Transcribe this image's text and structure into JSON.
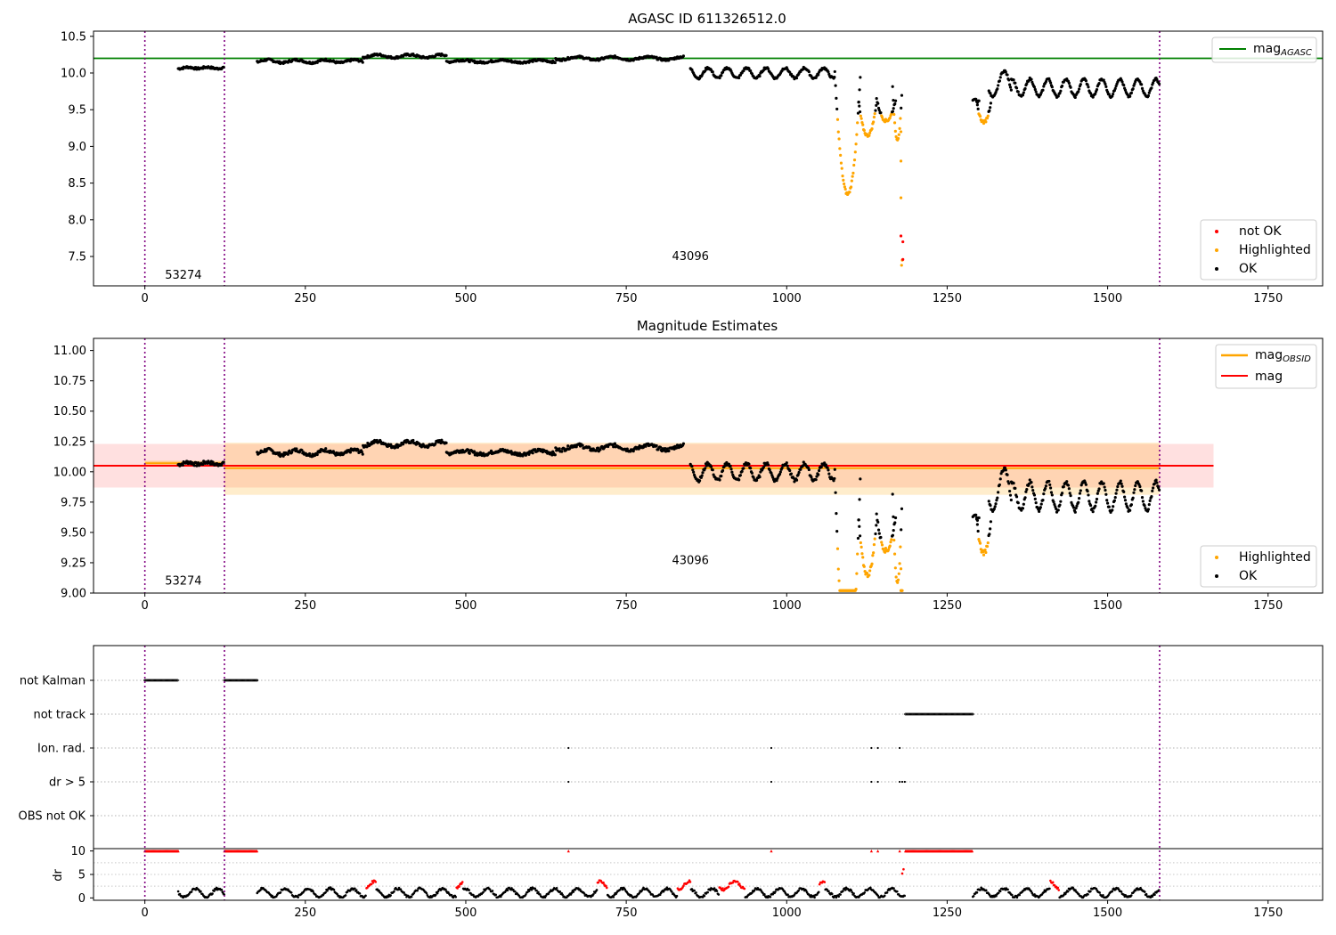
{
  "chart_data": [
    {
      "type": "scatter",
      "title": "AGASC ID 611326512.0",
      "xlim": [
        -80,
        1835
      ],
      "ylim": [
        7.1,
        10.57
      ],
      "xticks": [
        0,
        250,
        500,
        750,
        1000,
        1250,
        1500,
        1750
      ],
      "yticks": [
        "7.5",
        "8.0",
        "8.5",
        "9.0",
        "9.5",
        "10.0",
        "10.5"
      ],
      "vlines": [
        0,
        124,
        1581
      ],
      "hlines": [
        {
          "name": "mag_AGASC",
          "y": 10.2,
          "color": "#008000"
        }
      ],
      "obsid_labels": [
        {
          "text": "53274",
          "x": 60,
          "y": 7.2
        },
        {
          "text": "43096",
          "x": 850,
          "y": 7.45
        }
      ],
      "legend_lines": [
        {
          "label": "mag",
          "sub": "AGASC",
          "color": "#008000"
        }
      ],
      "legend_points": [
        {
          "label": "not OK",
          "color": "#ff0000"
        },
        {
          "label": "Highlighted",
          "color": "#ffa500"
        },
        {
          "label": "OK",
          "color": "#000000"
        }
      ],
      "segments": [
        {
          "x0": 52,
          "x1": 124,
          "base": 10.07,
          "amp": 0.01,
          "period": 30
        },
        {
          "x0": 175,
          "x1": 340,
          "base": 10.16,
          "amp": 0.02,
          "period": 45
        },
        {
          "x0": 340,
          "x1": 470,
          "base": 10.23,
          "amp": 0.02,
          "period": 50
        },
        {
          "x0": 470,
          "x1": 640,
          "base": 10.16,
          "amp": 0.015,
          "period": 60
        },
        {
          "x0": 640,
          "x1": 840,
          "base": 10.2,
          "amp": 0.02,
          "period": 55
        },
        {
          "x0": 850,
          "x1": 1075,
          "base": 10.0,
          "amp": 0.07,
          "period": 30
        },
        {
          "x0": 1290,
          "x1": 1300,
          "base": 9.63,
          "amp": 0.02,
          "period": 10
        },
        {
          "x0": 1315,
          "x1": 1350,
          "base": 9.85,
          "amp": 0.18,
          "period": 35
        },
        {
          "x0": 1350,
          "x1": 1581,
          "base": 9.8,
          "amp": 0.12,
          "period": 28
        }
      ],
      "dips": [
        {
          "x0": 1075,
          "x1": 1115,
          "top": 10.0,
          "bottom": 8.35
        },
        {
          "x0": 1112,
          "x1": 1140,
          "top": 9.6,
          "bottom": 9.15
        },
        {
          "x0": 1140,
          "x1": 1170,
          "top": 9.65,
          "bottom": 9.35
        },
        {
          "x0": 1165,
          "x1": 1180,
          "top": 9.8,
          "bottom": 9.1
        },
        {
          "x0": 1296,
          "x1": 1318,
          "top": 9.6,
          "bottom": 9.33
        }
      ],
      "highlighted_points": [
        [
          1178,
          9.2
        ],
        [
          1178,
          8.8
        ],
        [
          1178,
          8.3
        ],
        [
          1180,
          7.45
        ],
        [
          1179,
          7.38
        ]
      ],
      "notok_points": [
        [
          1178,
          7.78
        ],
        [
          1181,
          7.7
        ],
        [
          1181,
          7.46
        ]
      ]
    },
    {
      "type": "scatter",
      "title": "Magnitude Estimates",
      "xlim": [
        -80,
        1835
      ],
      "ylim": [
        9.0,
        11.1
      ],
      "xticks": [
        0,
        250,
        500,
        750,
        1000,
        1250,
        1500,
        1750
      ],
      "yticks": [
        "9.00",
        "9.25",
        "9.50",
        "9.75",
        "10.00",
        "10.25",
        "10.50",
        "10.75",
        "11.00"
      ],
      "vlines": [
        0,
        124,
        1581
      ],
      "bands": [
        {
          "name": "mag range",
          "x0": -80,
          "x1": 1665,
          "y0": 9.87,
          "y1": 10.23,
          "color": "#ff0000",
          "opacity": 0.12
        },
        {
          "name": "mag_OBSID 53274 range",
          "x0": 0,
          "x1": 124,
          "y0": 10.06,
          "y1": 10.09,
          "color": "#ffa500",
          "opacity": 0.35
        },
        {
          "name": "mag_OBSID 43096 range",
          "x0": 124,
          "x1": 1581,
          "y0": 9.81,
          "y1": 10.24,
          "color": "#ffa500",
          "opacity": 0.2
        }
      ],
      "hlines": [
        {
          "name": "mag_OBSID 53274",
          "x0": 0,
          "x1": 124,
          "y": 10.07,
          "color": "#ffa500"
        },
        {
          "name": "mag_OBSID 43096",
          "x0": 124,
          "x1": 1581,
          "y": 10.03,
          "color": "#ffa500"
        },
        {
          "name": "mag",
          "x0": -80,
          "x1": 1665,
          "y": 10.05,
          "color": "#ff0000"
        }
      ],
      "obsid_labels": [
        {
          "text": "53274",
          "x": 60,
          "y": 9.07
        },
        {
          "text": "43096",
          "x": 850,
          "y": 9.24
        }
      ],
      "legend_lines": [
        {
          "label": "mag",
          "sub": "OBSID",
          "color": "#ffa500"
        },
        {
          "label": "mag",
          "sub": "",
          "color": "#ff0000"
        }
      ],
      "legend_points": [
        {
          "label": "Highlighted",
          "color": "#ffa500"
        },
        {
          "label": "OK",
          "color": "#000000"
        }
      ]
    },
    {
      "type": "scatter",
      "title": "",
      "xlim": [
        -80,
        1835
      ],
      "xticks": [
        0,
        250,
        500,
        750,
        1000,
        1250,
        1500,
        1750
      ],
      "vlines": [
        0,
        124,
        1581
      ],
      "flag_rows": [
        "not Kalman",
        "not track",
        "Ion. rad.",
        "dr > 5",
        "OBS not OK"
      ],
      "flag_ranges": [
        {
          "row": "not Kalman",
          "ranges": [
            [
              0,
              52
            ],
            [
              124,
              175
            ]
          ]
        },
        {
          "row": "not track",
          "ranges": [
            [
              1185,
              1290
            ]
          ]
        }
      ],
      "flag_points": [
        {
          "row": "Ion. rad.",
          "x": [
            660,
            976,
            1132,
            1142,
            1176
          ]
        },
        {
          "row": "dr > 5",
          "x": [
            660,
            976,
            1132,
            1142,
            1176,
            1180,
            1184
          ]
        }
      ],
      "dr": {
        "ylabel": "dr",
        "yticks": [
          "0",
          "5",
          "10"
        ],
        "ylim": [
          -0.5,
          10.5
        ],
        "clip_value": 10,
        "clipped_ranges": [
          [
            0,
            52
          ],
          [
            124,
            175
          ],
          [
            1185,
            1290
          ]
        ],
        "clipped_points": [
          660,
          976,
          1132,
          1142,
          1176
        ],
        "segments": [
          [
            52,
            124
          ],
          [
            175,
            1185
          ],
          [
            1290,
            1581
          ]
        ],
        "red_ranges": [
          [
            345,
            360
          ],
          [
            485,
            495
          ],
          [
            705,
            720
          ],
          [
            830,
            850
          ],
          [
            895,
            935
          ],
          [
            1050,
            1060
          ],
          [
            1410,
            1425
          ]
        ]
      }
    }
  ]
}
